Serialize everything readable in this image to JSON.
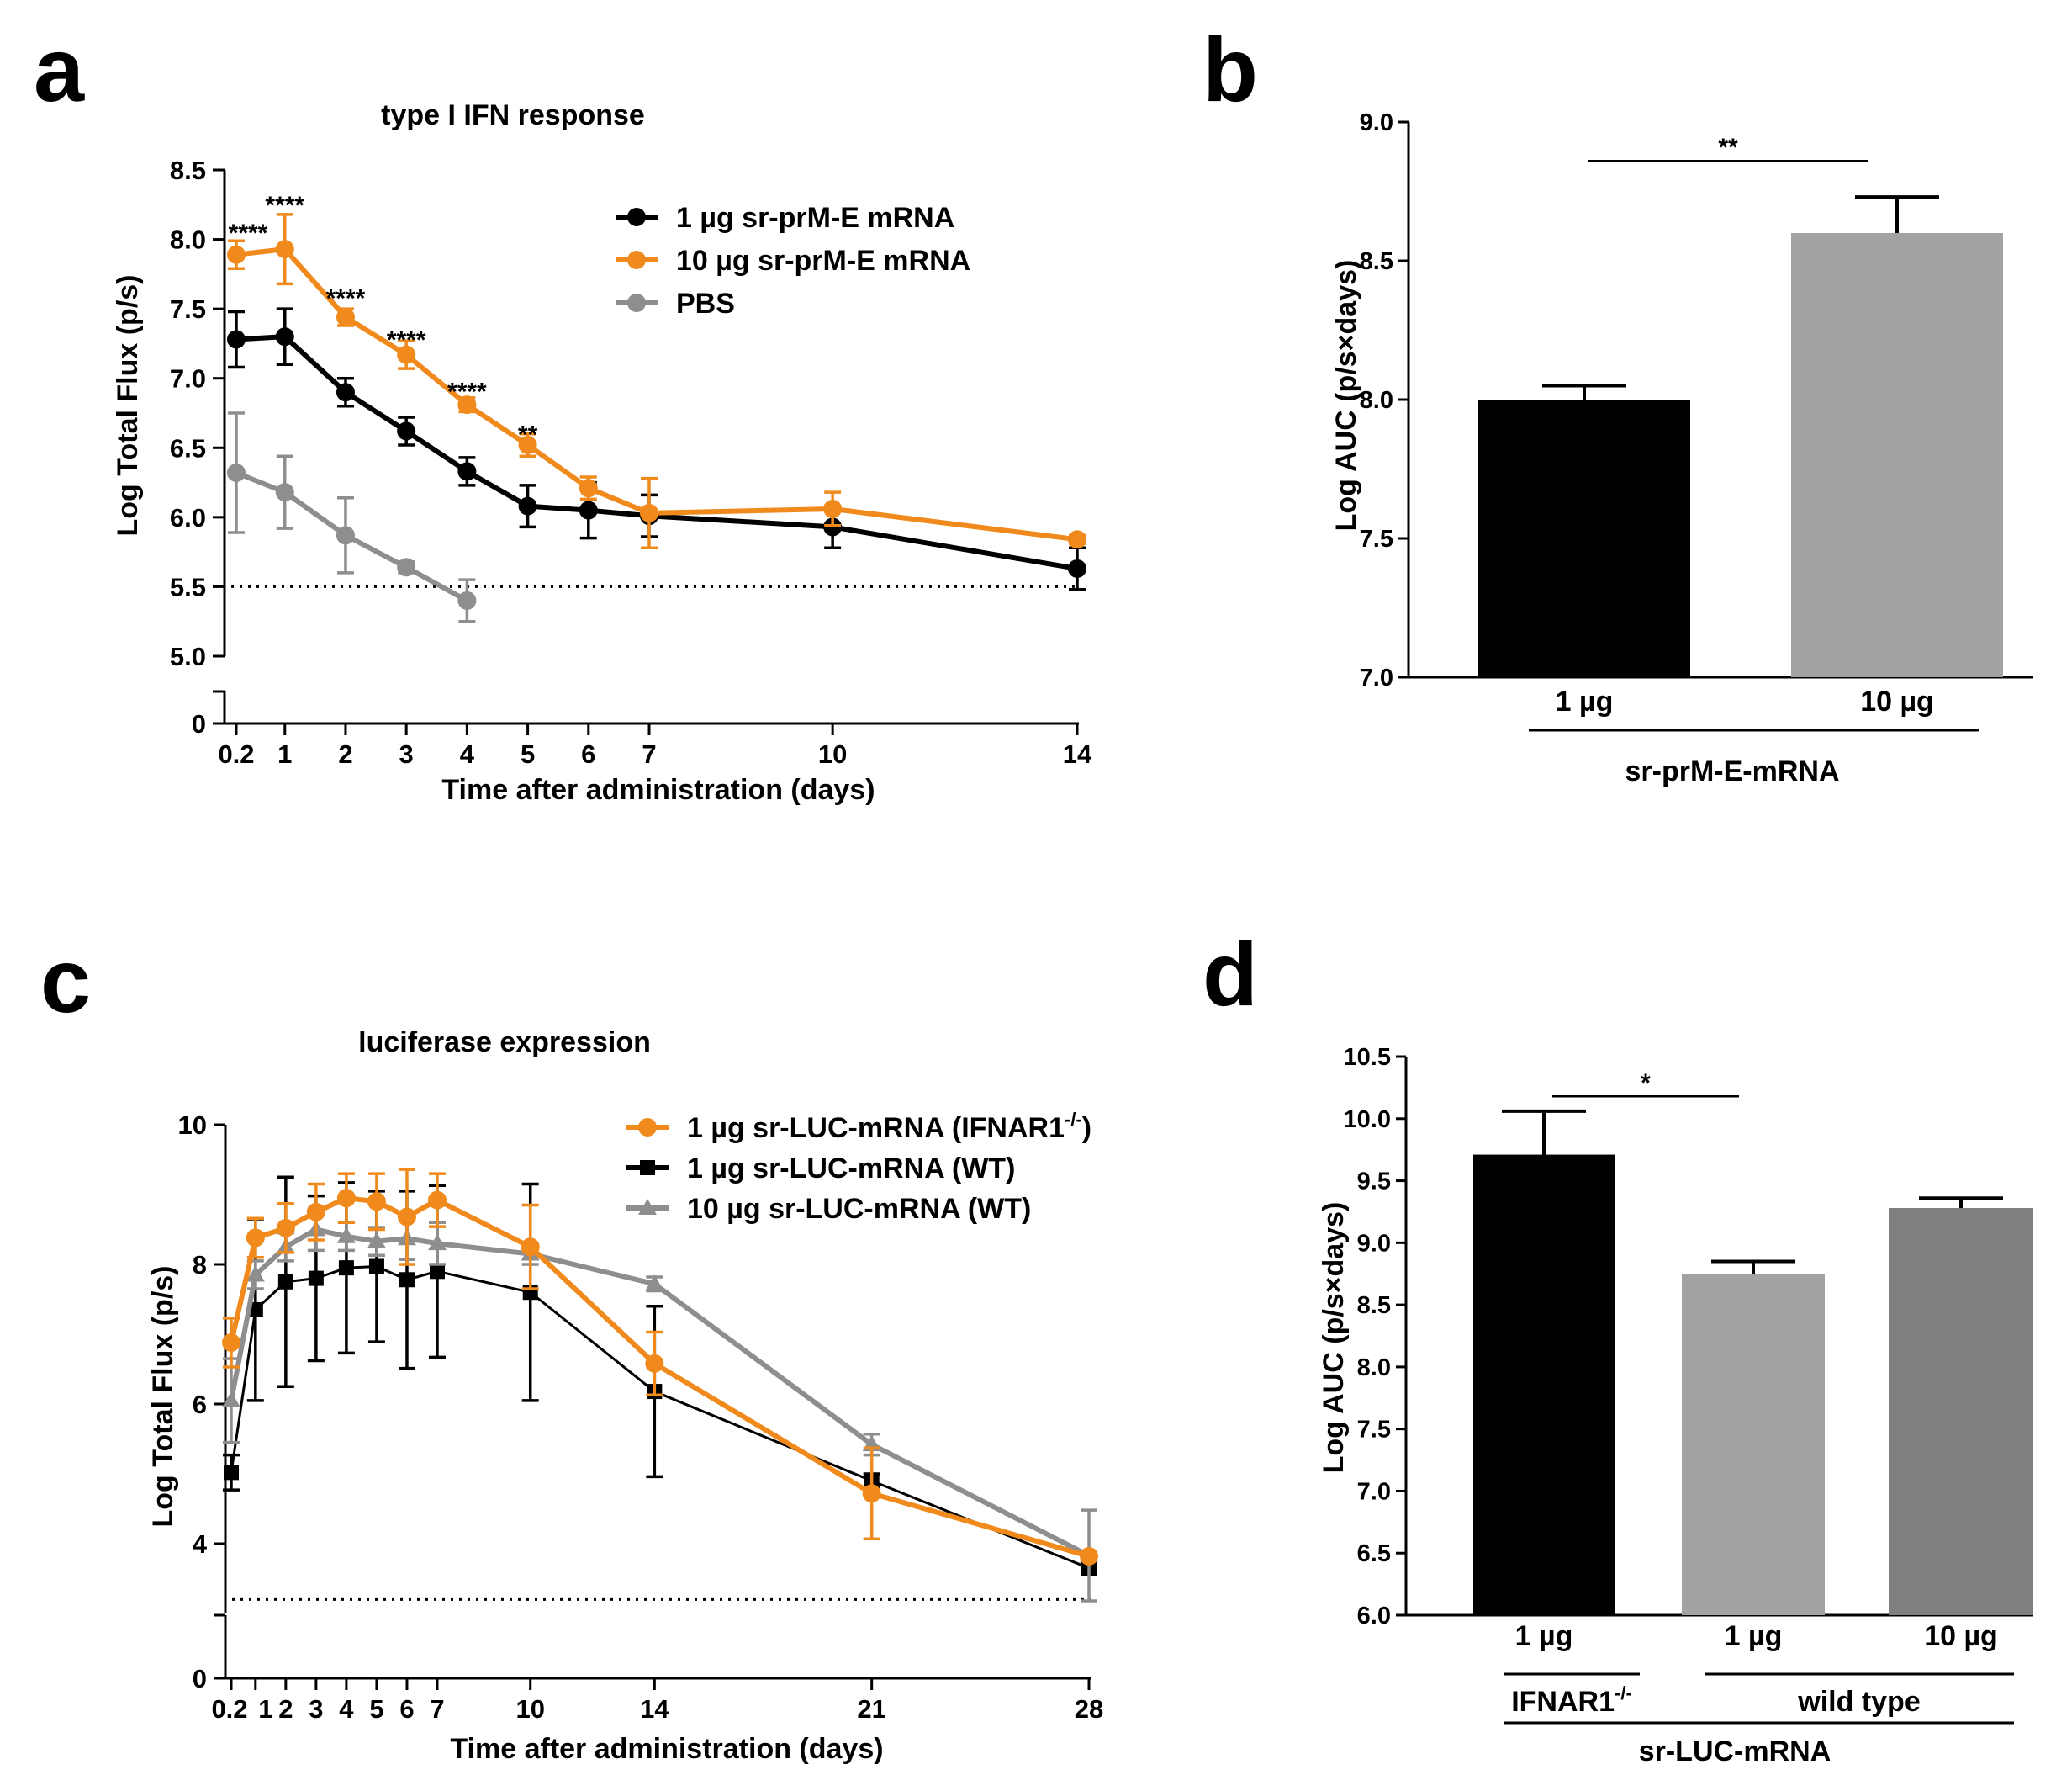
{
  "panels": {
    "a": "a",
    "b": "b",
    "c": "c",
    "d": "d"
  },
  "colors": {
    "orange": "#f08a1c",
    "black": "#000000",
    "gray": "#8e8e8e",
    "bar_light": "#a3a3a6",
    "bar_dark": "#7f7f7f"
  },
  "chart_data": [
    {
      "panel": "a",
      "type": "line",
      "title": "type I IFN response",
      "xlabel": "Time after administration (days)",
      "ylabel": "Log Total Flux (p/s)",
      "xlim": [
        0,
        14
      ],
      "ylim": [
        5.0,
        8.5
      ],
      "y_broken_axis_extra_tick": "0",
      "xticks": [
        "0.2",
        "1",
        "2",
        "3",
        "4",
        "5",
        "6",
        "7",
        "10",
        "14"
      ],
      "yticks": [
        "5.0",
        "5.5",
        "6.0",
        "6.5",
        "7.0",
        "7.5",
        "8.0",
        "8.5"
      ],
      "detection_limit": 5.5,
      "legend_position": "top-right",
      "series": [
        {
          "name": "1 µg sr-prM-E mRNA",
          "color": "#000000",
          "marker": "circle",
          "x": [
            0.2,
            1,
            2,
            3,
            4,
            5,
            6,
            7,
            10,
            14
          ],
          "y": [
            7.28,
            7.3,
            6.9,
            6.62,
            6.33,
            6.08,
            6.05,
            6.01,
            5.93,
            5.63
          ],
          "err": [
            0.2,
            0.2,
            0.1,
            0.1,
            0.1,
            0.15,
            0.2,
            0.15,
            0.15,
            0.15
          ]
        },
        {
          "name": "10 µg sr-prM-E mRNA",
          "color": "#f08a1c",
          "marker": "circle",
          "x": [
            0.2,
            1,
            2,
            3,
            4,
            5,
            6,
            7,
            10,
            14
          ],
          "y": [
            7.89,
            7.93,
            7.44,
            7.17,
            6.81,
            6.52,
            6.21,
            6.03,
            6.06,
            5.84
          ],
          "err": [
            0.1,
            0.25,
            0.06,
            0.1,
            0.05,
            0.08,
            0.08,
            0.25,
            0.12,
            0.03
          ]
        },
        {
          "name": "PBS",
          "color": "#8e8e8e",
          "marker": "circle",
          "x": [
            0.2,
            1,
            2,
            3,
            4
          ],
          "y": [
            6.32,
            6.18,
            5.87,
            5.64,
            5.4
          ],
          "err": [
            0.43,
            0.26,
            0.27,
            0.04,
            0.15
          ]
        }
      ],
      "annotations": [
        {
          "x": 0.2,
          "y": 8.07,
          "text": "****"
        },
        {
          "x": 1,
          "y": 8.27,
          "text": "****"
        },
        {
          "x": 2,
          "y": 7.6,
          "text": "****"
        },
        {
          "x": 3,
          "y": 7.3,
          "text": "****"
        },
        {
          "x": 4,
          "y": 6.93,
          "text": "****"
        },
        {
          "x": 5,
          "y": 6.62,
          "text": "**"
        }
      ]
    },
    {
      "panel": "b",
      "type": "bar",
      "ylabel": "Log AUC (p/s×days)",
      "ylim": [
        7.0,
        9.0
      ],
      "yticks": [
        "7.0",
        "7.5",
        "8.0",
        "8.5",
        "9.0"
      ],
      "categories": [
        "1 µg",
        "10 µg"
      ],
      "values": [
        8.0,
        8.6
      ],
      "err": [
        0.05,
        0.13
      ],
      "bar_colors": [
        "#000000",
        "#a3a3a6"
      ],
      "group_label": "sr-prM-E-mRNA",
      "significance": [
        {
          "from": 0,
          "to": 1,
          "y": 8.86,
          "text": "**"
        }
      ]
    },
    {
      "panel": "c",
      "type": "line",
      "title": "luciferase expression",
      "xlabel": "Time after administration (days)",
      "ylabel": "Log Total Flux (p/s)",
      "xlim": [
        0,
        28
      ],
      "ylim": [
        3,
        10
      ],
      "y_broken_axis_extra_tick": "0",
      "xticks": [
        "0.2",
        "1",
        "2",
        "3",
        "4",
        "5",
        "6",
        "7",
        "10",
        "14",
        "21",
        "28"
      ],
      "yticks": [
        "4",
        "6",
        "8",
        "10"
      ],
      "detection_limit": 3.2,
      "legend_position": "top-right",
      "series": [
        {
          "name": "1 µg sr-LUC-mRNA (IFNAR1",
          "name_sup": "-/-",
          "name_suffix": ")",
          "color": "#f08a1c",
          "marker": "circle",
          "x": [
            0.2,
            1,
            2,
            3,
            4,
            5,
            6,
            7,
            10,
            14,
            21,
            28
          ],
          "y": [
            6.88,
            8.38,
            8.52,
            8.75,
            8.95,
            8.9,
            8.68,
            8.92,
            8.25,
            6.58,
            4.72,
            3.82
          ],
          "err": [
            0.35,
            0.28,
            0.35,
            0.4,
            0.35,
            0.4,
            0.68,
            0.38,
            0.6,
            0.45,
            0.65,
            0.05
          ]
        },
        {
          "name": "1 µg sr-LUC-mRNA  (WT)",
          "color": "#000000",
          "marker": "square",
          "x": [
            0.2,
            1,
            2,
            3,
            4,
            5,
            6,
            7,
            10,
            14,
            21,
            28
          ],
          "y": [
            5.02,
            7.35,
            7.75,
            7.8,
            7.95,
            7.97,
            7.78,
            7.9,
            7.6,
            6.18,
            4.9,
            3.65
          ],
          "err": [
            0.25,
            1.3,
            1.5,
            1.18,
            1.22,
            1.08,
            1.27,
            1.23,
            1.55,
            1.22,
            0.1,
            0.05
          ]
        },
        {
          "name": "10 µg sr-LUC-mRNA (WT)",
          "color": "#8e8e8e",
          "marker": "triangle",
          "x": [
            0.2,
            1,
            2,
            3,
            4,
            5,
            6,
            7,
            10,
            14,
            21,
            28
          ],
          "y": [
            6.05,
            7.85,
            8.25,
            8.5,
            8.4,
            8.33,
            8.37,
            8.3,
            8.15,
            7.72,
            5.42,
            3.83
          ],
          "err": [
            0.6,
            0.2,
            0.2,
            0.3,
            0.2,
            0.2,
            0.3,
            0.3,
            0.15,
            0.1,
            0.15,
            0.65
          ]
        }
      ]
    },
    {
      "panel": "d",
      "type": "bar",
      "ylabel": "Log AUC (p/s×days)",
      "ylim": [
        6.0,
        10.5
      ],
      "yticks": [
        "6.0",
        "6.5",
        "7.0",
        "7.5",
        "8.0",
        "8.5",
        "9.0",
        "9.5",
        "10.0",
        "10.5"
      ],
      "categories": [
        "1 µg",
        "1 µg",
        "10 µg"
      ],
      "values": [
        9.71,
        8.75,
        9.28
      ],
      "err": [
        0.35,
        0.1,
        0.08
      ],
      "bar_colors": [
        "#000000",
        "#a3a3a6",
        "#7f7f7f"
      ],
      "subgroups": [
        {
          "label": "IFNAR1",
          "sup": "-/-",
          "bars": [
            0
          ]
        },
        {
          "label": "wild type",
          "bars": [
            1,
            2
          ]
        }
      ],
      "group_label": "sr-LUC-mRNA",
      "significance": [
        {
          "from": 0,
          "to": 1,
          "y": 10.18,
          "text": "*"
        }
      ]
    }
  ]
}
